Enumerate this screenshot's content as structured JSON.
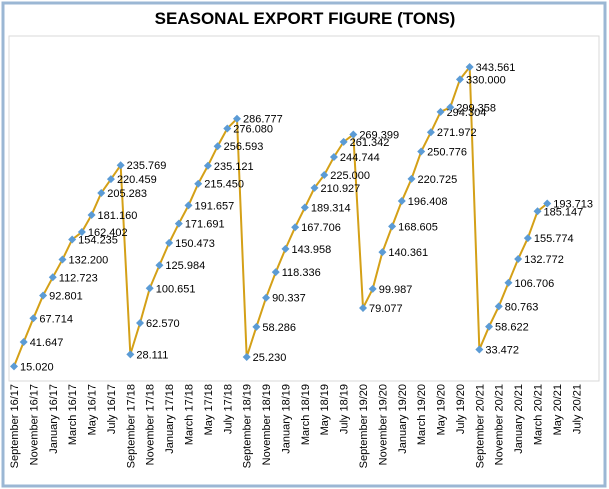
{
  "chart_data": {
    "type": "line",
    "title": "SEASONAL EXPORT FIGURE (TONS)",
    "categories": [
      "September 16/17",
      null,
      "November 16/17",
      null,
      "January 16/17",
      null,
      "March 16/17",
      null,
      "May 16/17",
      null,
      "July 16/17",
      null,
      "September 17/18",
      null,
      "November 17/18",
      null,
      "January 17/18",
      null,
      "March 17/18",
      null,
      "May 17/18",
      null,
      "July 17/18",
      null,
      "September 18/19",
      null,
      "November 18/19",
      null,
      "January 18/19",
      null,
      "March 18/19",
      null,
      "May 18/19",
      null,
      "July 18/19",
      null,
      "September 19/20",
      null,
      "November 19/20",
      null,
      "January 19/20",
      null,
      "March 19/20",
      null,
      "May 19/20",
      null,
      "July 19/20",
      null,
      "September 20/21",
      null,
      "November 20/21",
      null,
      "January 20/21",
      null,
      "March 20/21",
      null,
      "May 20/21",
      null,
      "July 20/21",
      null
    ],
    "values": [
      15.02,
      41.647,
      67.714,
      92.801,
      112.723,
      132.2,
      154.235,
      162.402,
      181.16,
      205.283,
      220.459,
      235.769,
      28.111,
      62.57,
      100.651,
      125.984,
      150.473,
      171.691,
      191.657,
      215.45,
      235.121,
      256.593,
      276.08,
      286.777,
      25.23,
      58.286,
      90.337,
      118.336,
      143.958,
      167.706,
      189.314,
      210.927,
      225,
      244.744,
      261.342,
      269.399,
      79.077,
      99.987,
      140.361,
      168.605,
      196.408,
      220.725,
      250.776,
      271.972,
      294.304,
      299.358,
      330,
      343.561,
      33.472,
      58.622,
      80.763,
      106.706,
      132.772,
      155.774,
      185.147,
      193.713,
      null,
      null,
      null,
      null
    ],
    "value_labels": [
      "15.020",
      "41.647",
      "67.714",
      "92.801",
      "112.723",
      "132.200",
      "154.235",
      "162.402",
      "181.160",
      "205.283",
      "220.459",
      "235.769",
      "28.111",
      "62.570",
      "100.651",
      "125.984",
      "150.473",
      "171.691",
      "191.657",
      "215.450",
      "235.121",
      "256.593",
      "276.080",
      "286.777",
      "25.230",
      "58.286",
      "90.337",
      "118.336",
      "143.958",
      "167.706",
      "189.314",
      "210.927",
      "225.000",
      "244.744",
      "261.342",
      "269.399",
      "79.077",
      "99.987",
      "140.361",
      "168.605",
      "196.408",
      "220.725",
      "250.776",
      "271.972",
      "294.304",
      "299.358",
      "330.000",
      "343.561",
      "33.472",
      "58.622",
      "80.763",
      "106.706",
      "132.772",
      "155.774",
      "185.147",
      "193.713",
      null,
      null,
      null,
      null
    ],
    "color": "#d4a017",
    "marker_color": "#5b9bd5",
    "ylim": [
      0,
      360
    ]
  }
}
